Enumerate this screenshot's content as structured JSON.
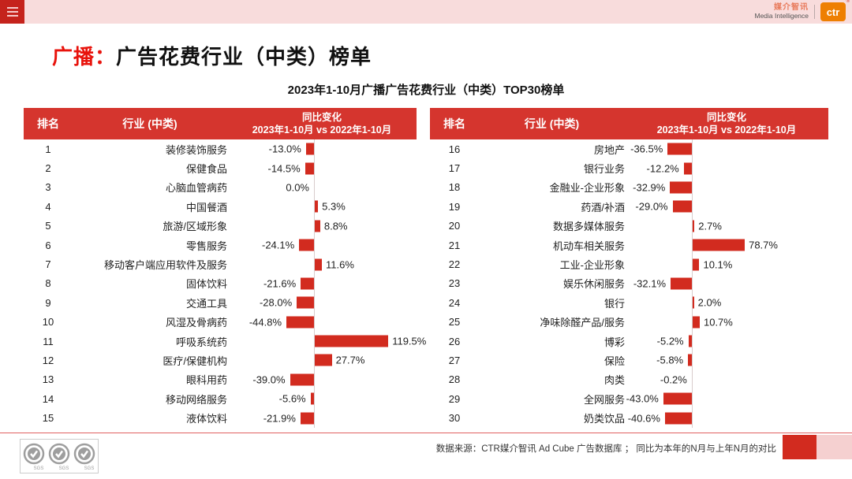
{
  "topbar": {
    "logo": {
      "brand_cn": "媒介智讯",
      "brand_en": "Media Intelligence",
      "badge": "ctr",
      "reg": "®"
    }
  },
  "title": {
    "prefix": "广播：",
    "rest": "广告花费行业（中类）榜单"
  },
  "subtitle": "2023年1-10月广播广告花费行业（中类）TOP30榜单",
  "table": {
    "headers": {
      "rank": "排名",
      "industry": "行业 (中类)",
      "change_line1": "同比变化",
      "change_line2": "2023年1-10月 vs 2022年1-10月"
    }
  },
  "chart_data": {
    "type": "bar",
    "title": "2023年1-10月广播广告花费行业（中类）TOP30榜单",
    "unit": "percent_yoy_change",
    "orientation": "horizontal",
    "panels": [
      {
        "name": "ranks 1-15",
        "rows": [
          {
            "rank": 1,
            "industry": "装修装饰服务",
            "value": -13.0,
            "label": "-13.0%"
          },
          {
            "rank": 2,
            "industry": "保健食品",
            "value": -14.5,
            "label": "-14.5%"
          },
          {
            "rank": 3,
            "industry": "心脑血管病药",
            "value": 0.0,
            "label": "0.0%"
          },
          {
            "rank": 4,
            "industry": "中国餐酒",
            "value": 5.3,
            "label": "5.3%"
          },
          {
            "rank": 5,
            "industry": "旅游/区域形象",
            "value": 8.8,
            "label": "8.8%"
          },
          {
            "rank": 6,
            "industry": "零售服务",
            "value": -24.1,
            "label": "-24.1%"
          },
          {
            "rank": 7,
            "industry": "移动客户端应用软件及服务",
            "value": 11.6,
            "label": "11.6%"
          },
          {
            "rank": 8,
            "industry": "固体饮料",
            "value": -21.6,
            "label": "-21.6%"
          },
          {
            "rank": 9,
            "industry": "交通工具",
            "value": -28.0,
            "label": "-28.0%"
          },
          {
            "rank": 10,
            "industry": "风湿及骨病药",
            "value": -44.8,
            "label": "-44.8%"
          },
          {
            "rank": 11,
            "industry": "呼吸系统药",
            "value": 119.5,
            "label": "119.5%"
          },
          {
            "rank": 12,
            "industry": "医疗/保健机构",
            "value": 27.7,
            "label": "27.7%"
          },
          {
            "rank": 13,
            "industry": "眼科用药",
            "value": -39.0,
            "label": "-39.0%"
          },
          {
            "rank": 14,
            "industry": "移动网络服务",
            "value": -5.6,
            "label": "-5.6%"
          },
          {
            "rank": 15,
            "industry": "液体饮料",
            "value": -21.9,
            "label": "-21.9%"
          }
        ]
      },
      {
        "name": "ranks 16-30",
        "rows": [
          {
            "rank": 16,
            "industry": "房地产",
            "value": -36.5,
            "label": "-36.5%"
          },
          {
            "rank": 17,
            "industry": "银行业务",
            "value": -12.2,
            "label": "-12.2%"
          },
          {
            "rank": 18,
            "industry": "金融业-企业形象",
            "value": -32.9,
            "label": "-32.9%"
          },
          {
            "rank": 19,
            "industry": "药酒/补酒",
            "value": -29.0,
            "label": "-29.0%"
          },
          {
            "rank": 20,
            "industry": "数据多媒体服务",
            "value": 2.7,
            "label": "2.7%"
          },
          {
            "rank": 21,
            "industry": "机动车相关服务",
            "value": 78.7,
            "label": "78.7%"
          },
          {
            "rank": 22,
            "industry": "工业-企业形象",
            "value": 10.1,
            "label": "10.1%"
          },
          {
            "rank": 23,
            "industry": "娱乐休闲服务",
            "value": -32.1,
            "label": "-32.1%"
          },
          {
            "rank": 24,
            "industry": "银行",
            "value": 2.0,
            "label": "2.0%"
          },
          {
            "rank": 25,
            "industry": "净味除醛产品/服务",
            "value": 10.7,
            "label": "10.7%"
          },
          {
            "rank": 26,
            "industry": "博彩",
            "value": -5.2,
            "label": "-5.2%"
          },
          {
            "rank": 27,
            "industry": "保险",
            "value": -5.8,
            "label": "-5.8%"
          },
          {
            "rank": 28,
            "industry": "肉类",
            "value": -0.2,
            "label": "-0.2%"
          },
          {
            "rank": 29,
            "industry": "全网服务",
            "value": -43.0,
            "label": "-43.0%"
          },
          {
            "rank": 30,
            "industry": "奶类饮品",
            "value": -40.6,
            "label": "-40.6%"
          }
        ]
      }
    ]
  },
  "footer": {
    "source": "数据来源：CTR媒介智讯 Ad Cube 广告数据库 ；  同比为本年的N月与上年N月的对比",
    "sgs_label": "SGS"
  },
  "colors": {
    "bar_red": "#d22b1f",
    "header_bg": "#d5352e",
    "title_accent": "#e8130c",
    "topbar_pink": "#f8dcdc",
    "menu_red": "#c5231c",
    "logo_orange": "#ee7f01",
    "footer_square_pink": "#f5d0d0"
  }
}
